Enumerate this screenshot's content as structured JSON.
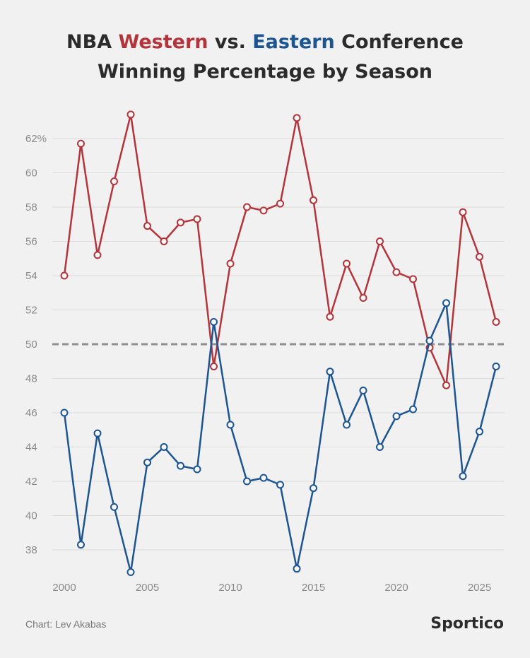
{
  "chart_data": {
    "type": "line",
    "title_parts": [
      "NBA ",
      "Western",
      " vs. ",
      "Eastern",
      " Conference"
    ],
    "title_line2": "Winning Percentage by Season",
    "xlabel": "",
    "ylabel": "",
    "x": [
      2000,
      2001,
      2002,
      2003,
      2004,
      2005,
      2006,
      2007,
      2008,
      2009,
      2010,
      2011,
      2012,
      2013,
      2014,
      2015,
      2016,
      2017,
      2018,
      2019,
      2020,
      2021,
      2022,
      2023,
      2024,
      2025,
      2026
    ],
    "xlim": [
      2000,
      2026
    ],
    "ylim": [
      36.5,
      63.5
    ],
    "x_ticks": [
      "2000",
      "2005",
      "2010",
      "2015",
      "2020",
      "2025"
    ],
    "x_tick_values": [
      2000,
      2005,
      2010,
      2015,
      2020,
      2025
    ],
    "y_ticks": [
      "62%",
      "60",
      "58",
      "56",
      "54",
      "52",
      "50",
      "48",
      "46",
      "44",
      "42",
      "40",
      "38"
    ],
    "y_tick_values": [
      62,
      60,
      58,
      56,
      54,
      52,
      50,
      48,
      46,
      44,
      42,
      40,
      38
    ],
    "reference_line": 50,
    "grid": true,
    "series": [
      {
        "name": "Western",
        "color": "#b3343a",
        "values": [
          54.0,
          61.7,
          55.2,
          59.5,
          63.4,
          56.9,
          56.0,
          57.1,
          57.3,
          48.7,
          54.7,
          58.0,
          57.8,
          58.2,
          63.2,
          58.4,
          51.6,
          54.7,
          52.7,
          56.0,
          54.2,
          53.8,
          49.8,
          47.6,
          57.7,
          55.1,
          51.3
        ]
      },
      {
        "name": "Eastern",
        "color": "#1c5590",
        "values": [
          46.0,
          38.3,
          44.8,
          40.5,
          36.7,
          43.1,
          44.0,
          42.9,
          42.7,
          51.3,
          45.3,
          42.0,
          42.2,
          41.8,
          36.9,
          41.6,
          48.4,
          45.3,
          47.3,
          44.0,
          45.8,
          46.2,
          50.2,
          52.4,
          42.3,
          44.9,
          48.7
        ]
      }
    ]
  },
  "footer": {
    "credit": "Chart: Lev Akabas",
    "logo": "Sportico"
  }
}
